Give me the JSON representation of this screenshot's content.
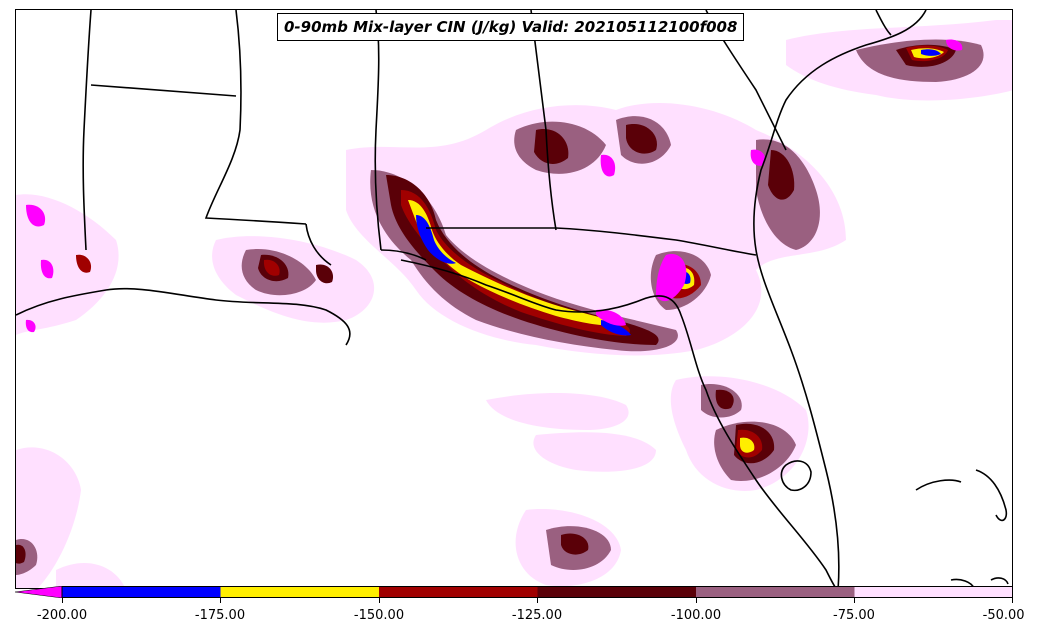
{
  "title": "0-90mb Mix-layer CIN (J/kg) Valid: 202105112100f008",
  "colorbar": {
    "ticks": [
      "-200.00",
      "-175.00",
      "-150.00",
      "-125.00",
      "-100.00",
      "-75.00",
      "-50.00"
    ],
    "colors": {
      "under": "#ff00ff",
      "b200_175": "#0000ff",
      "b175_150": "#ffee00",
      "b150_125": "#a00000",
      "b125_100": "#5a0008",
      "b100_75": "#9a6080",
      "b75_50": "#ffe0ff"
    }
  }
}
